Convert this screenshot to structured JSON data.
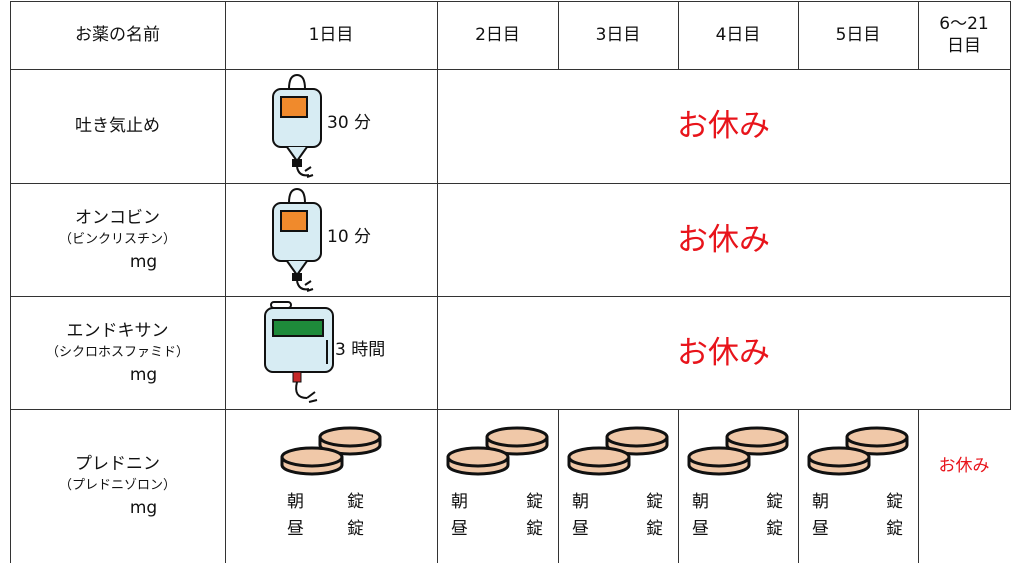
{
  "table": {
    "header": [
      [
        "お薬の名前"
      ],
      [
        "1日目"
      ],
      [
        "2日目"
      ],
      [
        "3日目"
      ],
      [
        "4日目"
      ],
      [
        "5日目"
      ],
      [
        "6〜21",
        "日目"
      ]
    ],
    "rows": [
      {
        "name": [
          "吐き気止め"
        ],
        "day1": "30 分",
        "rest": "お休み"
      },
      {
        "name": [
          "オンコビン",
          "（ビンクリスチン）",
          "mg"
        ],
        "day1": "10 分",
        "rest": "お休み"
      },
      {
        "name": [
          "エンドキサン",
          "（シクロホスファミド）",
          "mg"
        ],
        "day1": "3 時間",
        "rest": "お休み"
      },
      {
        "name": [
          "プレドニン",
          "（プレドニゾロン）",
          "mg"
        ],
        "doses": [
          [
            "朝",
            "錠",
            "昼",
            "錠"
          ],
          [
            "朝",
            "錠",
            "昼",
            "錠"
          ],
          [
            "朝",
            "錠",
            "昼",
            "錠"
          ],
          [
            "朝",
            "錠",
            "昼",
            "錠"
          ],
          [
            "朝",
            "錠",
            "昼",
            "錠"
          ]
        ],
        "rest": "お休み"
      }
    ]
  }
}
